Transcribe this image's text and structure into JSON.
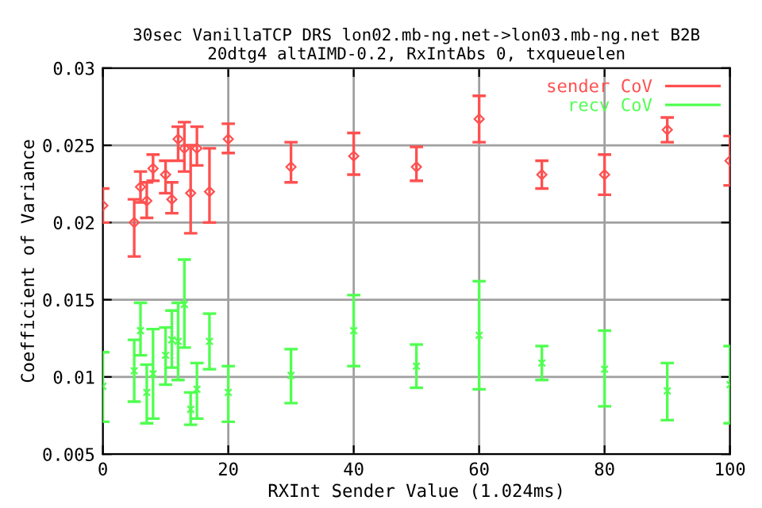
{
  "chart_data": {
    "type": "scatter",
    "title": "30sec VanillaTCP DRS lon02.mb-ng.net->lon03.mb-ng.net B2B\n20dtg4 altAIMD-0.2, RxIntAbs 0, txqueuelen",
    "xlabel": "RXInt Sender Value (1.024ms)",
    "ylabel": "Coefficient of Variance",
    "x": [
      0,
      5,
      6,
      7,
      8,
      10,
      11,
      12,
      13,
      14,
      15,
      17,
      20,
      30,
      40,
      50,
      60,
      70,
      80,
      90,
      100
    ],
    "series": [
      {
        "name": "sender CoV",
        "color": "#ff5050",
        "marker": "diamond",
        "values": [
          0.0211,
          0.02,
          0.0223,
          0.0214,
          0.0235,
          0.0231,
          0.0215,
          0.0254,
          0.0248,
          0.0219,
          0.0248,
          0.022,
          0.0254,
          0.0236,
          0.0243,
          0.0236,
          0.0267,
          0.0231,
          0.0231,
          0.026,
          0.024
        ],
        "errors": [
          [
            0.02,
            0.0222
          ],
          [
            0.0178,
            0.0215
          ],
          [
            0.0213,
            0.0233
          ],
          [
            0.0203,
            0.0226
          ],
          [
            0.0227,
            0.0244
          ],
          [
            0.0219,
            0.024
          ],
          [
            0.0206,
            0.0226
          ],
          [
            0.024,
            0.0262
          ],
          [
            0.0233,
            0.0265
          ],
          [
            0.0193,
            0.025
          ],
          [
            0.0237,
            0.0262
          ],
          [
            0.02,
            0.0248
          ],
          [
            0.0245,
            0.0264
          ],
          [
            0.0226,
            0.0252
          ],
          [
            0.0231,
            0.0258
          ],
          [
            0.0227,
            0.0249
          ],
          [
            0.0252,
            0.0282
          ],
          [
            0.0222,
            0.024
          ],
          [
            0.0218,
            0.0244
          ],
          [
            0.0252,
            0.0268
          ],
          [
            0.0224,
            0.0256
          ]
        ]
      },
      {
        "name": "recv CoV",
        "color": "#50ff50",
        "marker": "cross",
        "values": [
          0.0094,
          0.0104,
          0.013,
          0.009,
          0.0102,
          0.0114,
          0.0124,
          0.0123,
          0.0147,
          0.0079,
          0.0092,
          0.0123,
          0.009,
          0.0101,
          0.013,
          0.0107,
          0.0127,
          0.0109,
          0.0105,
          0.0091,
          0.0095
        ],
        "errors": [
          [
            0.0071,
            0.0116
          ],
          [
            0.0084,
            0.0124
          ],
          [
            0.0114,
            0.0148
          ],
          [
            0.007,
            0.0108
          ],
          [
            0.0073,
            0.0131
          ],
          [
            0.0095,
            0.0132
          ],
          [
            0.0106,
            0.0143
          ],
          [
            0.0098,
            0.0148
          ],
          [
            0.0119,
            0.0176
          ],
          [
            0.0069,
            0.009
          ],
          [
            0.0073,
            0.0109
          ],
          [
            0.0105,
            0.0141
          ],
          [
            0.0071,
            0.0107
          ],
          [
            0.0083,
            0.0118
          ],
          [
            0.0107,
            0.0153
          ],
          [
            0.0093,
            0.0121
          ],
          [
            0.0092,
            0.0162
          ],
          [
            0.0098,
            0.012
          ],
          [
            0.0081,
            0.013
          ],
          [
            0.0072,
            0.0109
          ],
          [
            0.007,
            0.012
          ]
        ]
      }
    ],
    "xlim": [
      0,
      100
    ],
    "xticks": [
      0,
      20,
      40,
      60,
      80,
      100
    ],
    "ylim": [
      0.005,
      0.03
    ],
    "yticks": [
      0.005,
      0.01,
      0.015,
      0.02,
      0.025,
      0.03
    ],
    "grid": true,
    "legend": "top right"
  }
}
